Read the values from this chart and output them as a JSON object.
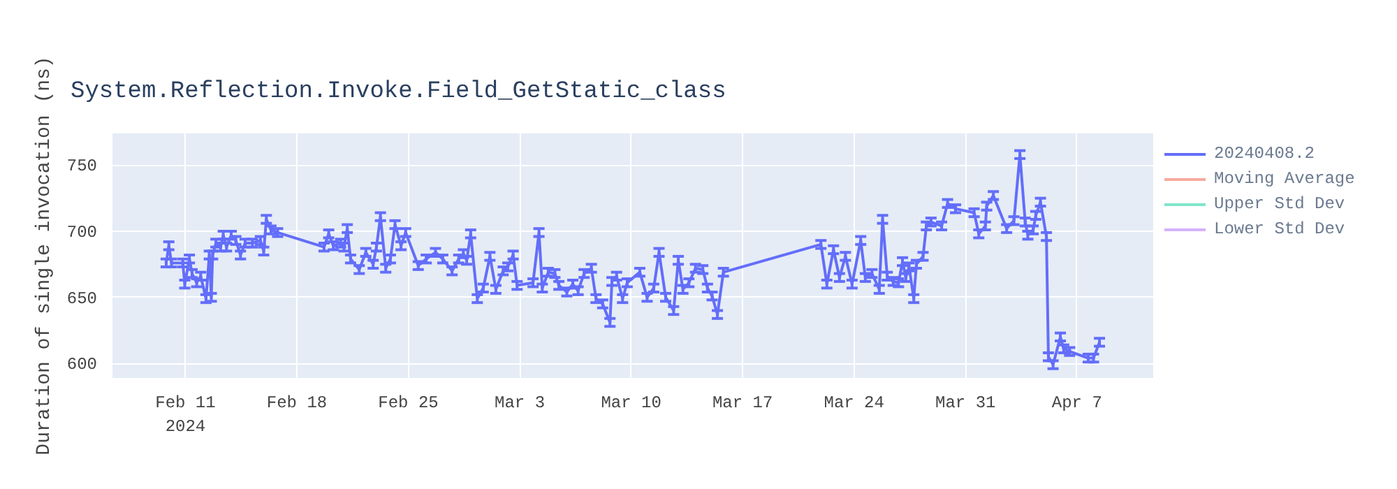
{
  "chart_data": {
    "type": "line",
    "title": "System.Reflection.Invoke.Field_GetStatic_class",
    "ylabel": "Duration of single invocation (ns)",
    "xlim": [
      "2024-02-06T10:00",
      "2024-04-11T19:00"
    ],
    "ylim": [
      589,
      774
    ],
    "xticks": [
      {
        "value": "2024-02-11",
        "label": "Feb 11\n2024"
      },
      {
        "value": "2024-02-18",
        "label": "Feb 18"
      },
      {
        "value": "2024-02-25",
        "label": "Feb 25"
      },
      {
        "value": "2024-03-03",
        "label": "Mar 3"
      },
      {
        "value": "2024-03-10",
        "label": "Mar 10"
      },
      {
        "value": "2024-03-17",
        "label": "Mar 17"
      },
      {
        "value": "2024-03-24",
        "label": "Mar 24"
      },
      {
        "value": "2024-03-31",
        "label": "Mar 31"
      },
      {
        "value": "2024-04-07",
        "label": "Apr 7"
      }
    ],
    "yticks": [
      600,
      650,
      700,
      750
    ],
    "grid": true,
    "legend": "right",
    "series": [
      {
        "name": "20240408.2",
        "color": "#636efa",
        "x": [
          "2024-02-09T19:00",
          "2024-02-09T23:00",
          "2024-02-10T03:00",
          "2024-02-10T20:00",
          "2024-02-10T23:00",
          "2024-02-11T06:00",
          "2024-02-11T10:00",
          "2024-02-11T17:00",
          "2024-02-11T23:00",
          "2024-02-12T07:00",
          "2024-02-12T12:00",
          "2024-02-12T15:00",
          "2024-02-12T17:00",
          "2024-02-12T22:00",
          "2024-02-13T05:00",
          "2024-02-13T09:00",
          "2024-02-13T14:00",
          "2024-02-13T21:00",
          "2024-02-14T04:00",
          "2024-02-14T11:00",
          "2024-02-14T18:00",
          "2024-02-15T05:00",
          "2024-02-15T17:00",
          "2024-02-15T22:00",
          "2024-02-16T02:00",
          "2024-02-16T09:00",
          "2024-02-16T19:00",
          "2024-02-19T17:00",
          "2024-02-20T00:00",
          "2024-02-20T07:00",
          "2024-02-20T18:00",
          "2024-02-20T23:00",
          "2024-02-21T04:00",
          "2024-02-21T09:00",
          "2024-02-21T22:00",
          "2024-02-22T08:00",
          "2024-02-22T19:00",
          "2024-02-23T00:00",
          "2024-02-23T06:00",
          "2024-02-23T14:00",
          "2024-02-23T21:00",
          "2024-02-24T04:00",
          "2024-02-24T13:00",
          "2024-02-24T20:00",
          "2024-02-25T15:00",
          "2024-02-26T03:00",
          "2024-02-26T17:00",
          "2024-02-27T04:00",
          "2024-02-27T18:00",
          "2024-02-28T04:00",
          "2024-02-28T11:00",
          "2024-02-28T16:00",
          "2024-02-28T22:00",
          "2024-02-29T08:00",
          "2024-02-29T17:00",
          "2024-03-01T03:00",
          "2024-03-01T12:00",
          "2024-03-01T23:00",
          "2024-03-02T06:00",
          "2024-03-02T14:00",
          "2024-03-02T20:00",
          "2024-03-03T20:00",
          "2024-03-04T05:00",
          "2024-03-04T10:00",
          "2024-03-04T19:00",
          "2024-03-05T05:00",
          "2024-03-05T11:00",
          "2024-03-05T23:00",
          "2024-03-06T08:00",
          "2024-03-06T16:00",
          "2024-03-07T01:00",
          "2024-03-07T12:00",
          "2024-03-07T19:00",
          "2024-03-08T05:00",
          "2024-03-08T16:00",
          "2024-03-08T19:00",
          "2024-03-09T02:00",
          "2024-03-09T11:00",
          "2024-03-09T18:00",
          "2024-03-10T13:00",
          "2024-03-11T00:00",
          "2024-03-11T10:00",
          "2024-03-11T18:00",
          "2024-03-12T04:00",
          "2024-03-12T16:00",
          "2024-03-12T23:00",
          "2024-03-13T06:00",
          "2024-03-13T15:00",
          "2024-03-14T01:00",
          "2024-03-14T12:00",
          "2024-03-14T19:00",
          "2024-03-15T02:00",
          "2024-03-15T10:00",
          "2024-03-15T19:00",
          "2024-03-21T22:00",
          "2024-03-22T07:00",
          "2024-03-22T17:00",
          "2024-03-23T02:00",
          "2024-03-23T11:00",
          "2024-03-23T21:00",
          "2024-03-24T10:00",
          "2024-03-24T17:00",
          "2024-03-25T03:00",
          "2024-03-25T14:00",
          "2024-03-25T19:00",
          "2024-03-26T02:00",
          "2024-03-26T11:00",
          "2024-03-26T19:00",
          "2024-03-27T01:00",
          "2024-03-27T06:00",
          "2024-03-27T11:00",
          "2024-03-27T18:00",
          "2024-03-27T22:00",
          "2024-03-28T08:00",
          "2024-03-28T13:00",
          "2024-03-28T20:00",
          "2024-03-29T12:00",
          "2024-03-29T21:00",
          "2024-03-30T09:00",
          "2024-03-31T13:00",
          "2024-03-31T20:00",
          "2024-04-01T06:00",
          "2024-04-01T08:00",
          "2024-04-01T18:00",
          "2024-04-02T14:00",
          "2024-04-03T01:00",
          "2024-04-03T10:00",
          "2024-04-03T18:00",
          "2024-04-03T22:00",
          "2024-04-04T06:00",
          "2024-04-04T10:00",
          "2024-04-04T17:00",
          "2024-04-05T02:00",
          "2024-04-05T05:00",
          "2024-04-05T12:00",
          "2024-04-05T23:00",
          "2024-04-06T04:00",
          "2024-04-06T13:00",
          "2024-04-07T17:00",
          "2024-04-08T01:00",
          "2024-04-08T10:00"
        ],
        "values": [
          676,
          689,
          676,
          676,
          660,
          679,
          668,
          661,
          666,
          649,
          682,
          650,
          682,
          691,
          688,
          697,
          688,
          697,
          693,
          682,
          691,
          691,
          693,
          685,
          709,
          701,
          699,
          688,
          698,
          689,
          691,
          688,
          702,
          679,
          671,
          684,
          675,
          688,
          711,
          672,
          679,
          705,
          689,
          699,
          674,
          679,
          684,
          679,
          670,
          679,
          683,
          678,
          698,
          649,
          657,
          681,
          656,
          670,
          673,
          682,
          659,
          661,
          699,
          657,
          669,
          668,
          659,
          654,
          660,
          655,
          668,
          672,
          649,
          645,
          631,
          662,
          666,
          649,
          661,
          669,
          650,
          657,
          684,
          650,
          640,
          678,
          656,
          661,
          672,
          671,
          657,
          651,
          637,
          669,
          690,
          660,
          686,
          665,
          681,
          660,
          693,
          665,
          668,
          656,
          709,
          666,
          662,
          661,
          677,
          665,
          673,
          649,
          675,
          681,
          704,
          707,
          704,
          721,
          717,
          714,
          698,
          704,
          719,
          727,
          702,
          708,
          758,
          707,
          697,
          701,
          712,
          722,
          696,
          605,
          599,
          620,
          611,
          609,
          604,
          604,
          616
        ],
        "errors": [
          3,
          3,
          3,
          3,
          3,
          3,
          3,
          3,
          3,
          3,
          3,
          3,
          3,
          3,
          3,
          3,
          3,
          3,
          3,
          3,
          3,
          3,
          3,
          3,
          3,
          3,
          3,
          3,
          3,
          3,
          3,
          3,
          3,
          3,
          3,
          3,
          3,
          3,
          3,
          3,
          3,
          3,
          3,
          3,
          3,
          3,
          3,
          3,
          3,
          3,
          3,
          3,
          3,
          3,
          3,
          3,
          3,
          3,
          3,
          3,
          3,
          3,
          3,
          3,
          3,
          3,
          3,
          3,
          3,
          3,
          3,
          3,
          3,
          3,
          3,
          3,
          3,
          3,
          3,
          3,
          3,
          3,
          3,
          3,
          3,
          3,
          3,
          3,
          3,
          3,
          3,
          3,
          3,
          3,
          3,
          3,
          3,
          3,
          3,
          3,
          3,
          3,
          3,
          3,
          3,
          3,
          3,
          3,
          3,
          3,
          3,
          3,
          3,
          3,
          3,
          3,
          3,
          3,
          3,
          3,
          3,
          3,
          3,
          3,
          3,
          3,
          3,
          3,
          3,
          3,
          3,
          3,
          3,
          3,
          3,
          3,
          3,
          3,
          3,
          3,
          3
        ]
      },
      {
        "name": "Moving Average",
        "color": "#ef553b"
      },
      {
        "name": "Upper Std Dev",
        "color": "#00cc96"
      },
      {
        "name": "Lower Std Dev",
        "color": "#ab63fa"
      }
    ]
  }
}
